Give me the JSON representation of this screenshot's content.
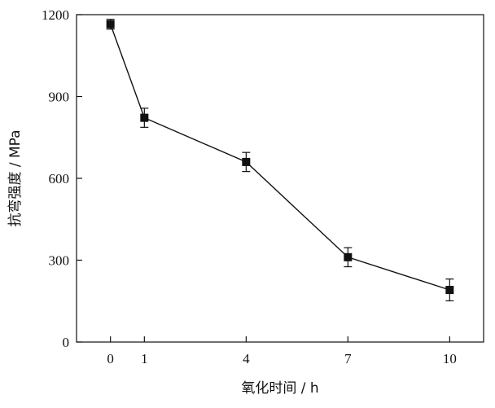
{
  "chart_data": {
    "type": "line",
    "x": [
      0,
      1,
      4,
      7,
      10
    ],
    "values": [
      1165,
      822,
      660,
      311,
      191
    ],
    "error": [
      18,
      35,
      35,
      35,
      40
    ],
    "xticks": [
      "0",
      "1",
      "4",
      "7",
      "10"
    ],
    "yticks": [
      "0",
      "300",
      "600",
      "900",
      "1200"
    ],
    "xlabel": "氧化时间 / h",
    "ylabel": "抗弯强度 / MPa",
    "xlim": [
      -1,
      11
    ],
    "ylim": [
      0,
      1200
    ],
    "grid": false,
    "marker": "square",
    "line_color": "#111111"
  }
}
